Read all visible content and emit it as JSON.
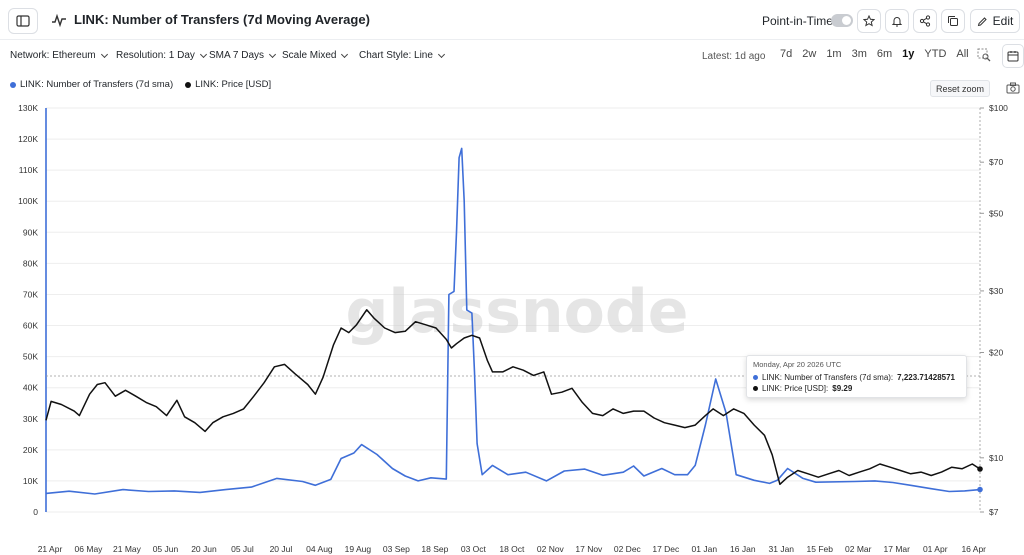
{
  "header": {
    "title": "LINK: Number of Transfers (7d Moving Average)",
    "point_in_time_label": "Point-in-Time",
    "edit_label": "Edit"
  },
  "toolbar": {
    "network": "Network: Ethereum",
    "resolution": "Resolution: 1 Day",
    "sma": "SMA 7 Days",
    "scale": "Scale Mixed",
    "chart_style": "Chart Style: Line",
    "latest": "Latest: 1d ago",
    "ranges": [
      "7d",
      "2w",
      "1m",
      "3m",
      "6m",
      "1y",
      "YTD",
      "All"
    ],
    "active_range": "1y"
  },
  "legend": {
    "items": [
      {
        "label": "LINK: Number of Transfers (7d sma)",
        "color": "#3f6fd8"
      },
      {
        "label": "LINK: Price [USD]",
        "color": "#111111"
      }
    ]
  },
  "reset_zoom_label": "Reset zoom",
  "watermark": "glassnode",
  "tooltip": {
    "date": "Monday, Apr 20 2026 UTC",
    "rows": [
      {
        "label": "LINK: Number of Transfers (7d sma):",
        "value": "7,223.71428571",
        "color": "#3f6fd8"
      },
      {
        "label": "LINK: Price [USD]:",
        "value": "$9.29",
        "color": "#111111"
      }
    ]
  },
  "colors": {
    "transfers": "#3f6fd8",
    "price": "#111111",
    "grid": "#eeeeee"
  },
  "chart_data": {
    "type": "line",
    "x_ticks": [
      "21 Apr",
      "06 May",
      "21 May",
      "05 Jun",
      "20 Jun",
      "05 Jul",
      "20 Jul",
      "04 Aug",
      "19 Aug",
      "03 Sep",
      "18 Sep",
      "03 Oct",
      "18 Oct",
      "02 Nov",
      "17 Nov",
      "02 Dec",
      "17 Dec",
      "01 Jan",
      "16 Jan",
      "31 Jan",
      "15 Feb",
      "02 Mar",
      "17 Mar",
      "01 Apr",
      "16 Apr"
    ],
    "y_left": {
      "ticks": [
        "0",
        "10K",
        "20K",
        "30K",
        "40K",
        "50K",
        "60K",
        "70K",
        "80K",
        "90K",
        "100K",
        "110K",
        "120K",
        "130K"
      ],
      "range": [
        0,
        130000
      ]
    },
    "y_right": {
      "scale": "log",
      "ticks": [
        "$7",
        "$10",
        "$20",
        "$30",
        "$50",
        "$70",
        "$100"
      ],
      "tick_values": [
        7,
        10,
        20,
        30,
        50,
        70,
        100
      ],
      "range": [
        7,
        100
      ]
    },
    "x_start": "2025-04-21",
    "x_end": "2026-04-20",
    "series": [
      {
        "name": "LINK: Number of Transfers (7d sma)",
        "axis": "left",
        "points": [
          [
            "2025-04-21",
            6000
          ],
          [
            "2025-04-30",
            6700
          ],
          [
            "2025-05-10",
            5800
          ],
          [
            "2025-05-21",
            7200
          ],
          [
            "2025-05-31",
            6600
          ],
          [
            "2025-06-10",
            6800
          ],
          [
            "2025-06-20",
            6300
          ],
          [
            "2025-06-30",
            7200
          ],
          [
            "2025-07-10",
            8000
          ],
          [
            "2025-07-20",
            10800
          ],
          [
            "2025-07-30",
            9800
          ],
          [
            "2025-08-04",
            8600
          ],
          [
            "2025-08-10",
            10500
          ],
          [
            "2025-08-14",
            17200
          ],
          [
            "2025-08-19",
            19000
          ],
          [
            "2025-08-22",
            21700
          ],
          [
            "2025-08-28",
            18500
          ],
          [
            "2025-09-03",
            14000
          ],
          [
            "2025-09-08",
            11600
          ],
          [
            "2025-09-13",
            10000
          ],
          [
            "2025-09-18",
            11000
          ],
          [
            "2025-09-24",
            10600
          ],
          [
            "2025-09-25",
            70000
          ],
          [
            "2025-09-27",
            71000
          ],
          [
            "2025-09-28",
            90000
          ],
          [
            "2025-09-29",
            114000
          ],
          [
            "2025-09-30",
            117000
          ],
          [
            "2025-10-01",
            100000
          ],
          [
            "2025-10-02",
            65000
          ],
          [
            "2025-10-04",
            64000
          ],
          [
            "2025-10-05",
            45000
          ],
          [
            "2025-10-06",
            22000
          ],
          [
            "2025-10-08",
            12000
          ],
          [
            "2025-10-12",
            15000
          ],
          [
            "2025-10-18",
            12000
          ],
          [
            "2025-10-25",
            12800
          ],
          [
            "2025-11-02",
            10000
          ],
          [
            "2025-11-09",
            13200
          ],
          [
            "2025-11-17",
            13800
          ],
          [
            "2025-11-24",
            11800
          ],
          [
            "2025-12-02",
            12800
          ],
          [
            "2025-12-06",
            14800
          ],
          [
            "2025-12-10",
            11600
          ],
          [
            "2025-12-17",
            14000
          ],
          [
            "2025-12-22",
            12000
          ],
          [
            "2025-12-27",
            12000
          ],
          [
            "2025-12-30",
            15000
          ],
          [
            "2026-01-03",
            28000
          ],
          [
            "2026-01-07",
            42800
          ],
          [
            "2026-01-11",
            32000
          ],
          [
            "2026-01-15",
            12000
          ],
          [
            "2026-01-22",
            10200
          ],
          [
            "2026-01-28",
            9200
          ],
          [
            "2026-01-31",
            10200
          ],
          [
            "2026-02-04",
            14000
          ],
          [
            "2026-02-10",
            10800
          ],
          [
            "2026-02-15",
            9600
          ],
          [
            "2026-03-02",
            9800
          ],
          [
            "2026-03-10",
            10000
          ],
          [
            "2026-03-17",
            9500
          ],
          [
            "2026-03-24",
            8600
          ],
          [
            "2026-04-01",
            7500
          ],
          [
            "2026-04-08",
            6600
          ],
          [
            "2026-04-14",
            6800
          ],
          [
            "2026-04-20",
            7224
          ]
        ]
      },
      {
        "name": "LINK: Price [USD]",
        "axis": "right",
        "points": [
          [
            "2025-04-21",
            12.8
          ],
          [
            "2025-04-23",
            14.5
          ],
          [
            "2025-04-27",
            14.2
          ],
          [
            "2025-05-02",
            13.6
          ],
          [
            "2025-05-04",
            13.2
          ],
          [
            "2025-05-08",
            15.2
          ],
          [
            "2025-05-11",
            16.2
          ],
          [
            "2025-05-14",
            16.4
          ],
          [
            "2025-05-18",
            15.0
          ],
          [
            "2025-05-22",
            15.6
          ],
          [
            "2025-05-26",
            15.0
          ],
          [
            "2025-05-30",
            14.4
          ],
          [
            "2025-06-03",
            14.0
          ],
          [
            "2025-06-07",
            13.2
          ],
          [
            "2025-06-11",
            14.6
          ],
          [
            "2025-06-14",
            13.1
          ],
          [
            "2025-06-18",
            12.6
          ],
          [
            "2025-06-22",
            11.9
          ],
          [
            "2025-06-25",
            12.6
          ],
          [
            "2025-06-29",
            13.1
          ],
          [
            "2025-07-03",
            13.4
          ],
          [
            "2025-07-07",
            13.8
          ],
          [
            "2025-07-11",
            15.0
          ],
          [
            "2025-07-15",
            16.4
          ],
          [
            "2025-07-19",
            18.2
          ],
          [
            "2025-07-23",
            18.5
          ],
          [
            "2025-07-27",
            17.4
          ],
          [
            "2025-08-01",
            16.2
          ],
          [
            "2025-08-04",
            15.2
          ],
          [
            "2025-08-07",
            17.0
          ],
          [
            "2025-08-11",
            21.0
          ],
          [
            "2025-08-14",
            23.5
          ],
          [
            "2025-08-17",
            22.8
          ],
          [
            "2025-08-20",
            24.0
          ],
          [
            "2025-08-24",
            26.5
          ],
          [
            "2025-08-27",
            25.0
          ],
          [
            "2025-08-31",
            23.5
          ],
          [
            "2025-09-04",
            22.8
          ],
          [
            "2025-09-08",
            23.0
          ],
          [
            "2025-09-12",
            24.5
          ],
          [
            "2025-09-16",
            24.0
          ],
          [
            "2025-09-20",
            23.5
          ],
          [
            "2025-09-24",
            21.8
          ],
          [
            "2025-09-26",
            20.6
          ],
          [
            "2025-09-28",
            21.2
          ],
          [
            "2025-10-01",
            22.0
          ],
          [
            "2025-10-04",
            22.4
          ],
          [
            "2025-10-07",
            22.0
          ],
          [
            "2025-10-10",
            19.0
          ],
          [
            "2025-10-12",
            17.6
          ],
          [
            "2025-10-16",
            17.6
          ],
          [
            "2025-10-20",
            18.2
          ],
          [
            "2025-10-24",
            17.8
          ],
          [
            "2025-10-28",
            17.2
          ],
          [
            "2025-11-01",
            17.6
          ],
          [
            "2025-11-04",
            15.2
          ],
          [
            "2025-11-08",
            15.4
          ],
          [
            "2025-11-12",
            15.8
          ],
          [
            "2025-11-16",
            14.4
          ],
          [
            "2025-11-20",
            13.4
          ],
          [
            "2025-11-24",
            13.2
          ],
          [
            "2025-11-28",
            13.8
          ],
          [
            "2025-12-02",
            13.4
          ],
          [
            "2025-12-06",
            13.6
          ],
          [
            "2025-12-10",
            13.6
          ],
          [
            "2025-12-14",
            13.0
          ],
          [
            "2025-12-18",
            12.6
          ],
          [
            "2025-12-22",
            12.4
          ],
          [
            "2025-12-26",
            12.2
          ],
          [
            "2025-12-30",
            12.4
          ],
          [
            "2026-01-03",
            13.2
          ],
          [
            "2026-01-06",
            13.8
          ],
          [
            "2026-01-10",
            13.2
          ],
          [
            "2026-01-14",
            13.8
          ],
          [
            "2026-01-18",
            13.4
          ],
          [
            "2026-01-22",
            12.4
          ],
          [
            "2026-01-26",
            11.6
          ],
          [
            "2026-01-29",
            10.2
          ],
          [
            "2026-02-01",
            8.4
          ],
          [
            "2026-02-04",
            8.8
          ],
          [
            "2026-02-08",
            9.2
          ],
          [
            "2026-02-12",
            9.0
          ],
          [
            "2026-02-16",
            8.8
          ],
          [
            "2026-02-20",
            9.0
          ],
          [
            "2026-02-24",
            9.2
          ],
          [
            "2026-02-28",
            8.9
          ],
          [
            "2026-03-04",
            9.1
          ],
          [
            "2026-03-08",
            9.3
          ],
          [
            "2026-03-12",
            9.6
          ],
          [
            "2026-03-16",
            9.4
          ],
          [
            "2026-03-20",
            9.2
          ],
          [
            "2026-03-24",
            9.0
          ],
          [
            "2026-03-28",
            9.1
          ],
          [
            "2026-04-01",
            8.9
          ],
          [
            "2026-04-05",
            9.1
          ],
          [
            "2026-04-09",
            9.4
          ],
          [
            "2026-04-13",
            9.3
          ],
          [
            "2026-04-17",
            9.6
          ],
          [
            "2026-04-20",
            9.29
          ]
        ]
      }
    ],
    "grid": true,
    "crosshair_at": "2026-04-20"
  }
}
